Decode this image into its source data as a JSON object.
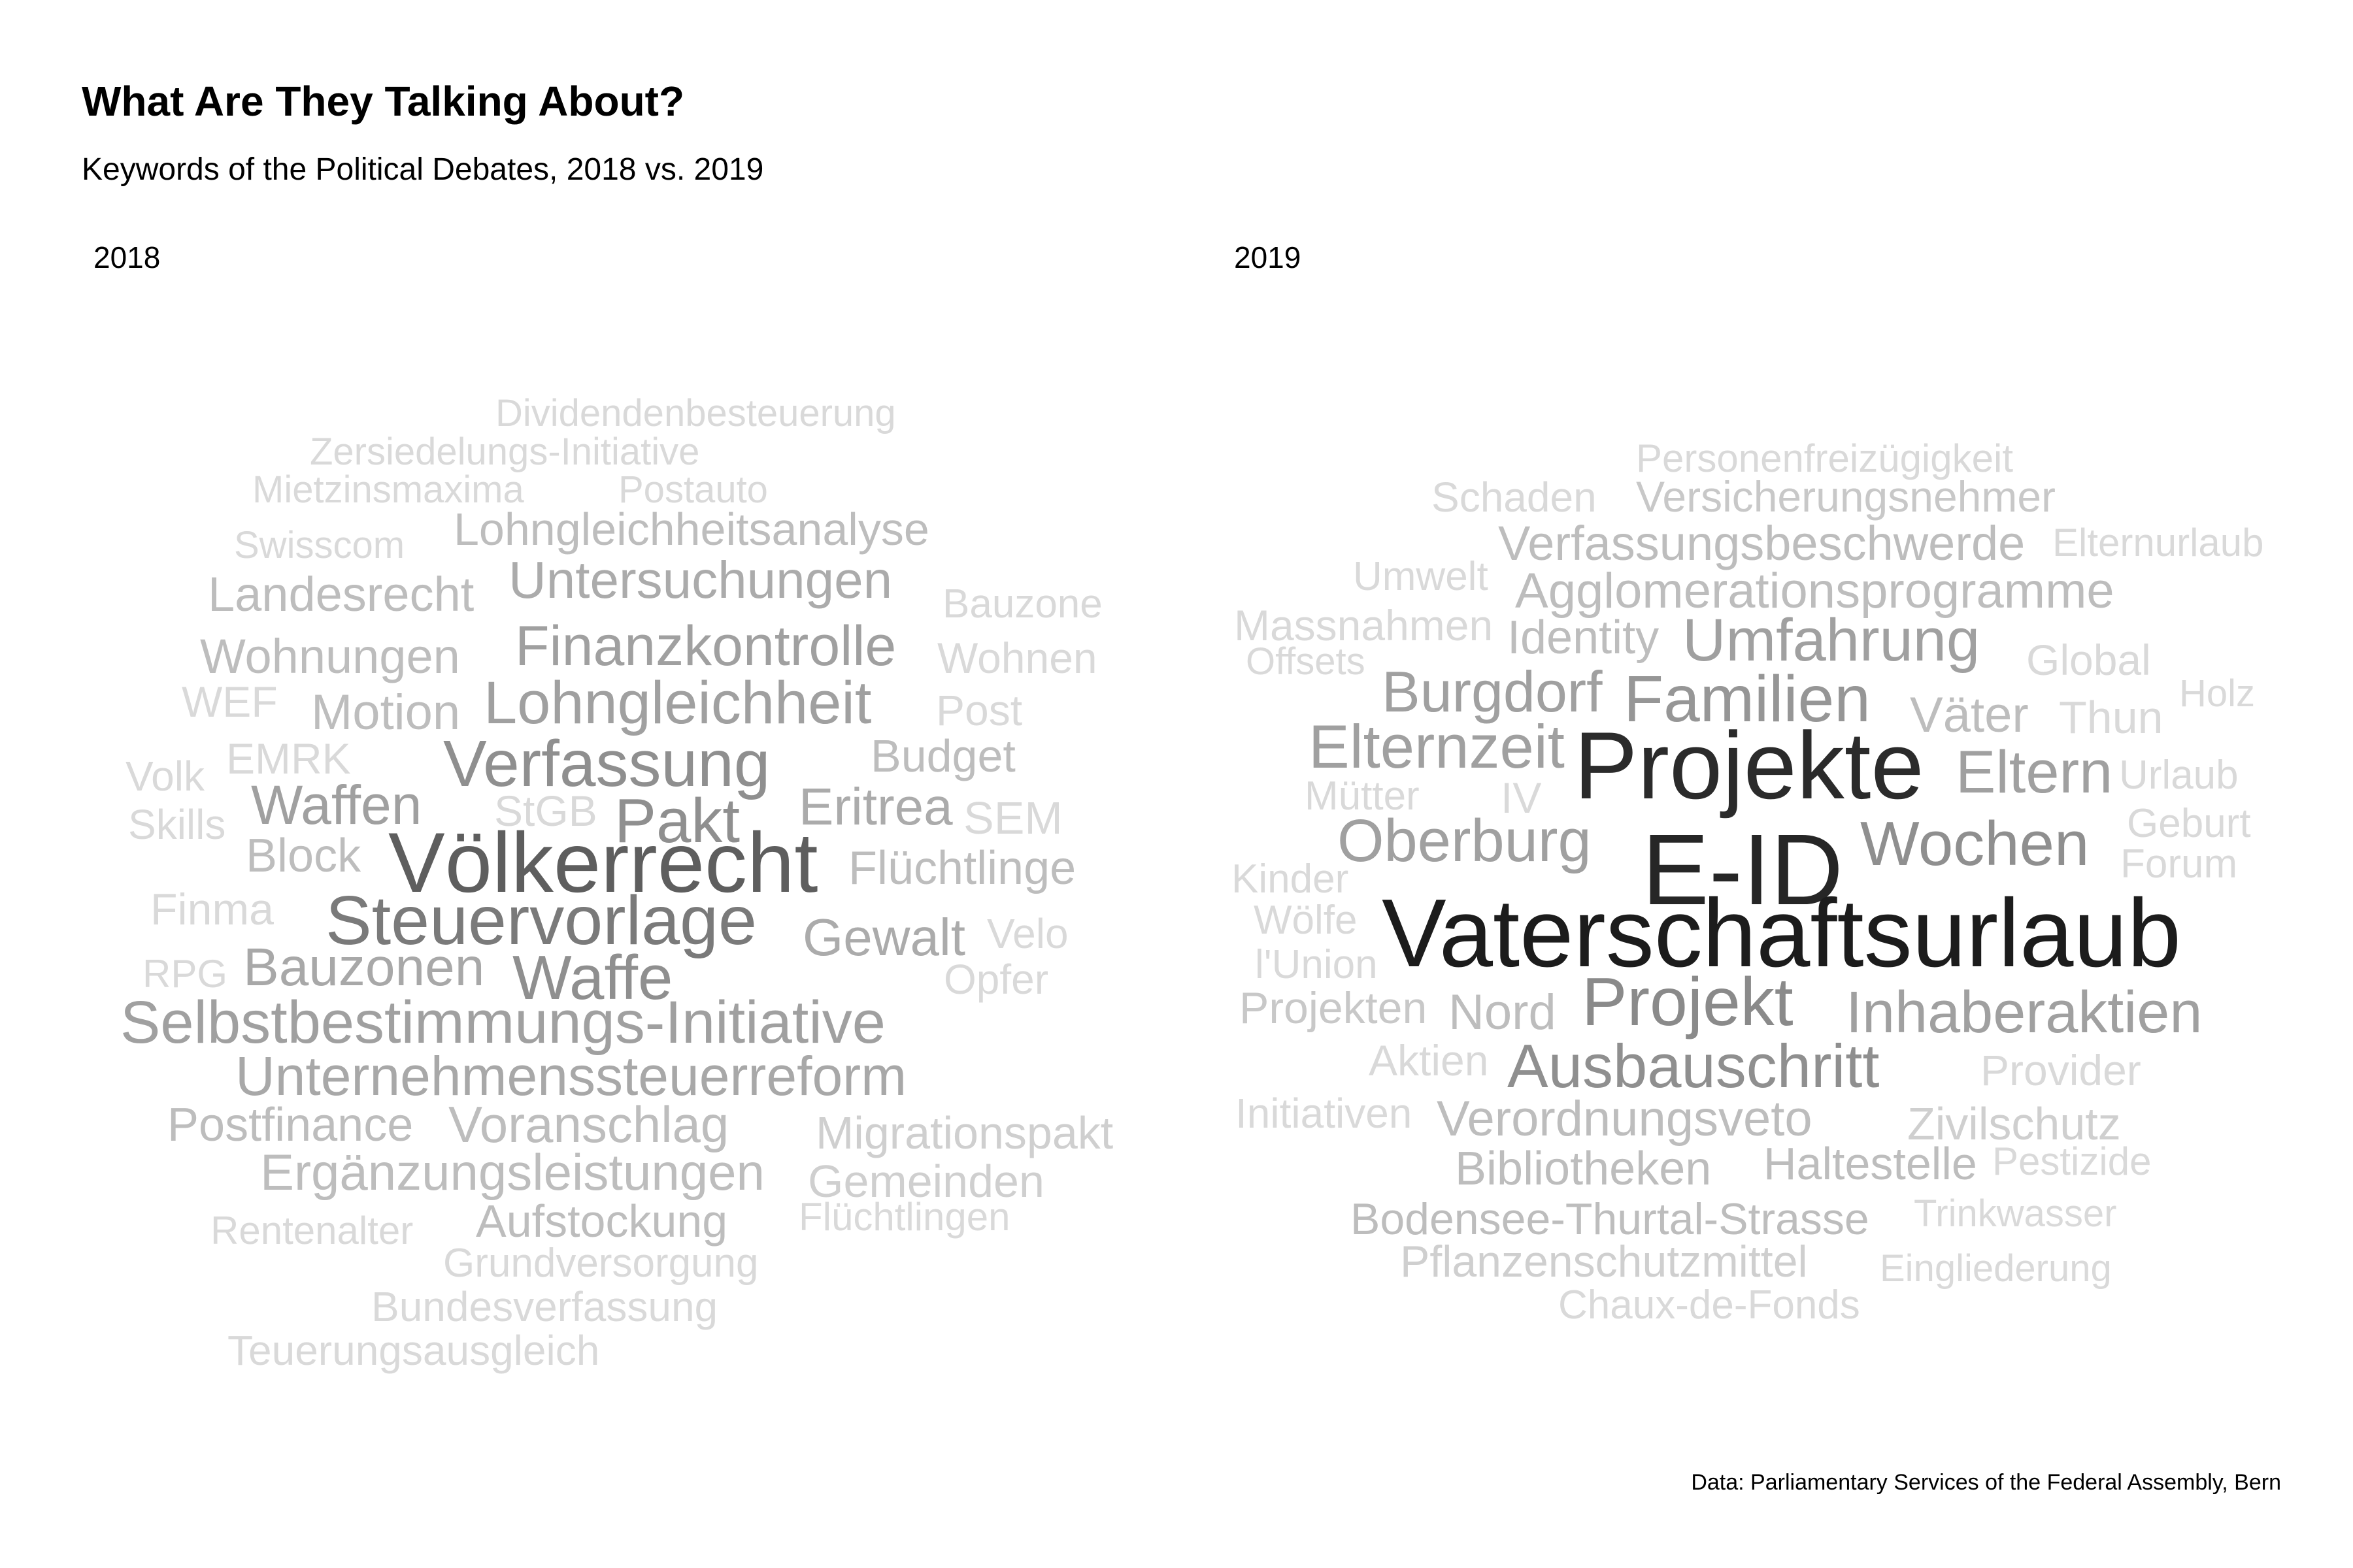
{
  "title": "What Are They Talking About?",
  "subtitle": "Keywords of the Political Debates, 2018 vs. 2019",
  "caption": "Data: Parliamentary Services of the Federal Assembly, Bern",
  "chart_data": [
    {
      "type": "wordcloud",
      "panel_label": "2018",
      "words": [
        {
          "text": "Dividendenbesteuerung",
          "weight": 1
        },
        {
          "text": "Zersiedelungs-Initiative",
          "weight": 1
        },
        {
          "text": "Mietzinsmaxima",
          "weight": 1
        },
        {
          "text": "Postauto",
          "weight": 1
        },
        {
          "text": "Swisscom",
          "weight": 1
        },
        {
          "text": "Lohngleichheitsanalyse",
          "weight": 2
        },
        {
          "text": "Landesrecht",
          "weight": 2
        },
        {
          "text": "Untersuchungen",
          "weight": 2
        },
        {
          "text": "Bauzone",
          "weight": 1
        },
        {
          "text": "Wohnungen",
          "weight": 2
        },
        {
          "text": "Finanzkontrolle",
          "weight": 3
        },
        {
          "text": "Wohnen",
          "weight": 1
        },
        {
          "text": "WEF",
          "weight": 1
        },
        {
          "text": "Motion",
          "weight": 2
        },
        {
          "text": "Lohngleichheit",
          "weight": 3
        },
        {
          "text": "Post",
          "weight": 1
        },
        {
          "text": "Volk",
          "weight": 1
        },
        {
          "text": "EMRK",
          "weight": 1
        },
        {
          "text": "Verfassung",
          "weight": 3
        },
        {
          "text": "Budget",
          "weight": 1
        },
        {
          "text": "Skills",
          "weight": 1
        },
        {
          "text": "Waffen",
          "weight": 3
        },
        {
          "text": "StGB",
          "weight": 1
        },
        {
          "text": "Pakt",
          "weight": 3
        },
        {
          "text": "Eritrea",
          "weight": 2
        },
        {
          "text": "SEM",
          "weight": 1
        },
        {
          "text": "Block",
          "weight": 1
        },
        {
          "text": "Völkerrecht",
          "weight": 5
        },
        {
          "text": "Flüchtlinge",
          "weight": 2
        },
        {
          "text": "Finma",
          "weight": 1
        },
        {
          "text": "Steuervorlage",
          "weight": 4
        },
        {
          "text": "Gewalt",
          "weight": 2
        },
        {
          "text": "Velo",
          "weight": 1
        },
        {
          "text": "RPG",
          "weight": 1
        },
        {
          "text": "Bauzonen",
          "weight": 3
        },
        {
          "text": "Waffe",
          "weight": 3
        },
        {
          "text": "Opfer",
          "weight": 1
        },
        {
          "text": "Selbstbestimmungs-Initiative",
          "weight": 3
        },
        {
          "text": "Unternehmenssteuerreform",
          "weight": 2
        },
        {
          "text": "Postfinance",
          "weight": 2
        },
        {
          "text": "Voranschlag",
          "weight": 2
        },
        {
          "text": "Migrationspakt",
          "weight": 1
        },
        {
          "text": "Ergänzungsleistungen",
          "weight": 2
        },
        {
          "text": "Gemeinden",
          "weight": 1
        },
        {
          "text": "Rentenalter",
          "weight": 1
        },
        {
          "text": "Aufstockung",
          "weight": 2
        },
        {
          "text": "Flüchtlingen",
          "weight": 1
        },
        {
          "text": "Grundversorgung",
          "weight": 1
        },
        {
          "text": "Bundesverfassung",
          "weight": 1
        },
        {
          "text": "Teuerungsausgleich",
          "weight": 1
        }
      ]
    },
    {
      "type": "wordcloud",
      "panel_label": "2019",
      "words": [
        {
          "text": "Personenfreizügigkeit",
          "weight": 1
        },
        {
          "text": "Schaden",
          "weight": 1
        },
        {
          "text": "Versicherungsnehmer",
          "weight": 1
        },
        {
          "text": "Verfassungsbeschwerde",
          "weight": 2
        },
        {
          "text": "Elternurlaub",
          "weight": 1
        },
        {
          "text": "Umwelt",
          "weight": 1
        },
        {
          "text": "Agglomerationsprogramme",
          "weight": 2
        },
        {
          "text": "Massnahmen",
          "weight": 1
        },
        {
          "text": "Identity",
          "weight": 1
        },
        {
          "text": "Umfahrung",
          "weight": 3
        },
        {
          "text": "Offsets",
          "weight": 1
        },
        {
          "text": "Global",
          "weight": 1
        },
        {
          "text": "Burgdorf",
          "weight": 3
        },
        {
          "text": "Familien",
          "weight": 3
        },
        {
          "text": "Väter",
          "weight": 2
        },
        {
          "text": "Thun",
          "weight": 1
        },
        {
          "text": "Holz",
          "weight": 1
        },
        {
          "text": "Elternzeit",
          "weight": 3
        },
        {
          "text": "Projekte",
          "weight": 5
        },
        {
          "text": "Eltern",
          "weight": 3
        },
        {
          "text": "Mütter",
          "weight": 1
        },
        {
          "text": "IV",
          "weight": 1
        },
        {
          "text": "Urlaub",
          "weight": 1
        },
        {
          "text": "Oberburg",
          "weight": 3
        },
        {
          "text": "E-ID",
          "weight": 6
        },
        {
          "text": "Wochen",
          "weight": 3
        },
        {
          "text": "Geburt",
          "weight": 1
        },
        {
          "text": "Kinder",
          "weight": 1
        },
        {
          "text": "Forum",
          "weight": 1
        },
        {
          "text": "Wölfe",
          "weight": 1
        },
        {
          "text": "Vaterschaftsurlaub",
          "weight": 6
        },
        {
          "text": "l'Union",
          "weight": 1
        },
        {
          "text": "Projekten",
          "weight": 1
        },
        {
          "text": "Nord",
          "weight": 2
        },
        {
          "text": "Projekt",
          "weight": 4
        },
        {
          "text": "Inhaberaktien",
          "weight": 3
        },
        {
          "text": "Aktien",
          "weight": 1
        },
        {
          "text": "Ausbauschritt",
          "weight": 3
        },
        {
          "text": "Provider",
          "weight": 1
        },
        {
          "text": "Initiativen",
          "weight": 1
        },
        {
          "text": "Verordnungsveto",
          "weight": 2
        },
        {
          "text": "Zivilschutz",
          "weight": 1
        },
        {
          "text": "Bibliotheken",
          "weight": 2
        },
        {
          "text": "Haltestelle",
          "weight": 2
        },
        {
          "text": "Pestizide",
          "weight": 1
        },
        {
          "text": "Bodensee-Thurtal-Strasse",
          "weight": 2
        },
        {
          "text": "Trinkwasser",
          "weight": 1
        },
        {
          "text": "Pflanzenschutzmittel",
          "weight": 1
        },
        {
          "text": "Eingliederung",
          "weight": 1
        },
        {
          "text": "Chaux-de-Fonds",
          "weight": 1
        }
      ]
    }
  ]
}
